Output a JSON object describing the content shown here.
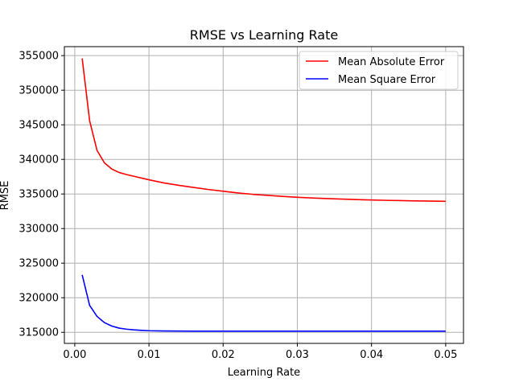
{
  "chart_data": {
    "type": "line",
    "title": "RMSE vs Learning Rate",
    "xlabel": "Learning Rate",
    "ylabel": "RMSE",
    "xlim": [
      -0.0014,
      0.0524
    ],
    "ylim": [
      313400,
      356300
    ],
    "xticks": [
      0.0,
      0.01,
      0.02,
      0.03,
      0.04,
      0.05
    ],
    "xtick_labels": [
      "0.00",
      "0.01",
      "0.02",
      "0.03",
      "0.04",
      "0.05"
    ],
    "yticks": [
      315000,
      320000,
      325000,
      330000,
      335000,
      340000,
      345000,
      350000,
      355000
    ],
    "ytick_labels": [
      "315000",
      "320000",
      "325000",
      "330000",
      "335000",
      "340000",
      "345000",
      "350000",
      "355000"
    ],
    "grid": true,
    "legend_position": "top-right",
    "x": [
      0.001,
      0.002,
      0.003,
      0.004,
      0.005,
      0.006,
      0.007,
      0.008,
      0.009,
      0.01,
      0.012,
      0.014,
      0.016,
      0.018,
      0.02,
      0.022,
      0.024,
      0.026,
      0.028,
      0.03,
      0.032,
      0.034,
      0.036,
      0.038,
      0.04,
      0.042,
      0.044,
      0.046,
      0.048,
      0.05
    ],
    "series": [
      {
        "name": "Mean Absolute Error",
        "color": "#ff0000",
        "values": [
          354600,
          345600,
          341300,
          339500,
          338600,
          338100,
          337800,
          337550,
          337300,
          337050,
          336600,
          336250,
          335950,
          335650,
          335400,
          335150,
          334950,
          334800,
          334650,
          334520,
          334420,
          334340,
          334260,
          334190,
          334130,
          334080,
          334040,
          334000,
          333970,
          333940
        ]
      },
      {
        "name": "Mean Square Error",
        "color": "#0000ff",
        "values": [
          323300,
          318900,
          317300,
          316400,
          315900,
          315600,
          315450,
          315350,
          315280,
          315230,
          315200,
          315180,
          315170,
          315170,
          315170,
          315170,
          315170,
          315170,
          315170,
          315170,
          315170,
          315170,
          315170,
          315170,
          315170,
          315170,
          315170,
          315170,
          315170,
          315170
        ]
      }
    ]
  }
}
